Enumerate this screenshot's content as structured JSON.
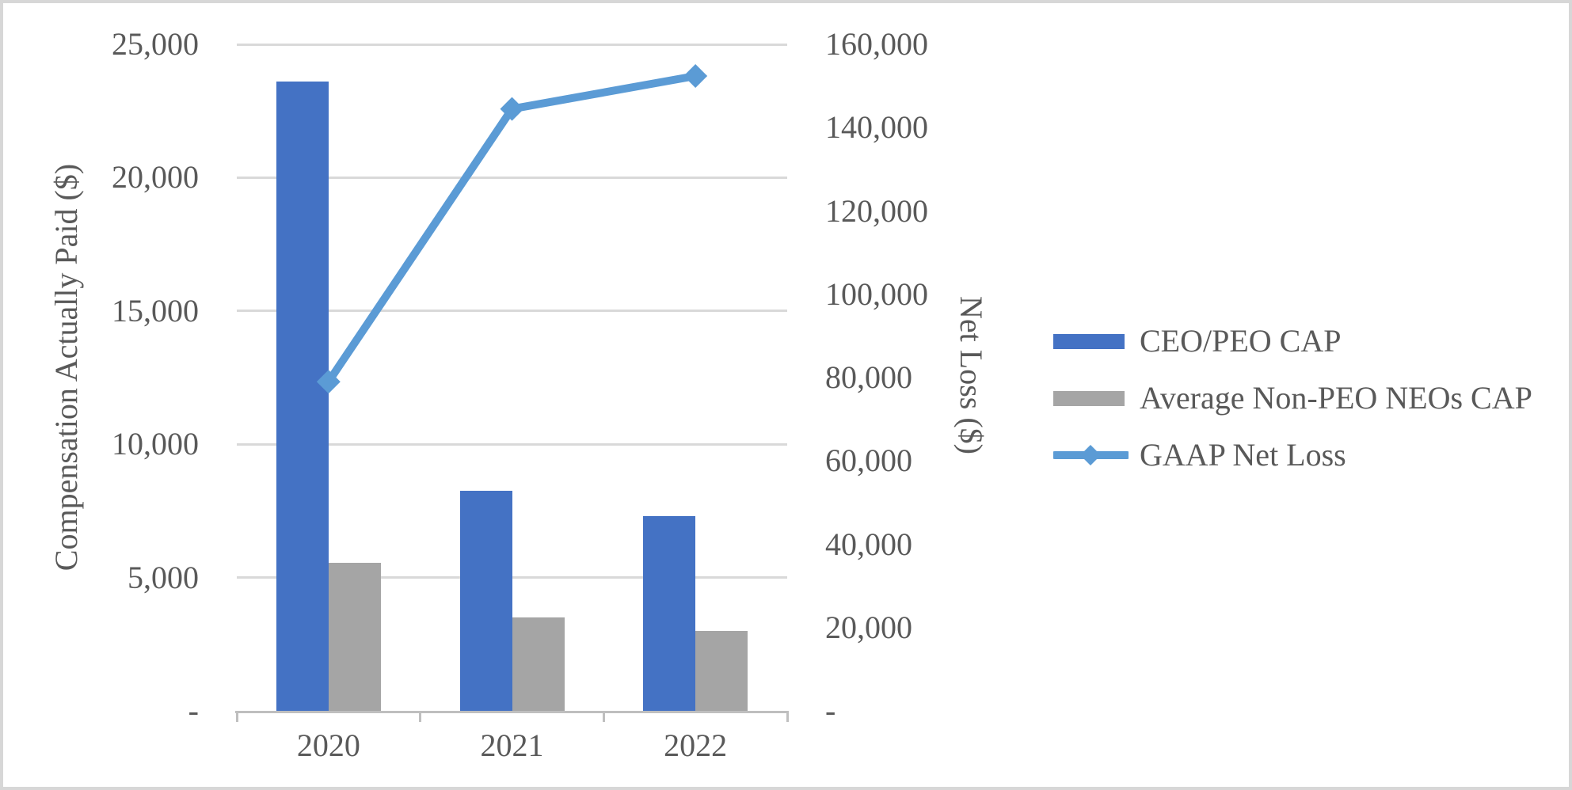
{
  "chart_data": {
    "type": "combo-bar-line",
    "title": "",
    "categories": [
      "2020",
      "2021",
      "2022"
    ],
    "series": [
      {
        "name": "CEO/PEO CAP",
        "chart": "bar",
        "axis": "left",
        "color": "#4472C4",
        "values": [
          23600,
          8250,
          7300
        ]
      },
      {
        "name": "Average Non-PEO NEOs CAP",
        "chart": "bar",
        "axis": "left",
        "color": "#A5A5A5",
        "values": [
          5550,
          3500,
          3000
        ]
      },
      {
        "name": "GAAP Net Loss",
        "chart": "line",
        "axis": "right",
        "color": "#5B9BD5",
        "marker": "diamond",
        "values": [
          79000,
          144500,
          152400
        ]
      }
    ],
    "left_axis": {
      "label": "Compensation Actually Paid ($)",
      "min": 0,
      "max": 25000,
      "ticks": [
        {
          "value": 25000,
          "label": "25,000"
        },
        {
          "value": 20000,
          "label": "20,000"
        },
        {
          "value": 15000,
          "label": "15,000"
        },
        {
          "value": 10000,
          "label": "10,000"
        },
        {
          "value": 5000,
          "label": "5,000"
        },
        {
          "value": 0,
          "label": "-"
        }
      ]
    },
    "right_axis": {
      "label": "Net Loss ($)",
      "min": 0,
      "max": 160000,
      "ticks": [
        {
          "value": 160000,
          "label": "160,000"
        },
        {
          "value": 140000,
          "label": "140,000"
        },
        {
          "value": 120000,
          "label": "120,000"
        },
        {
          "value": 100000,
          "label": "100,000"
        },
        {
          "value": 80000,
          "label": "80,000"
        },
        {
          "value": 60000,
          "label": "60,000"
        },
        {
          "value": 40000,
          "label": "40,000"
        },
        {
          "value": 20000,
          "label": "20,000"
        },
        {
          "value": 0,
          "label": "-"
        }
      ]
    },
    "legend_position": "right",
    "grid": true,
    "colors": {
      "text": "#595959",
      "gridline": "#D9D9D9",
      "axis_line": "#BFBFBF",
      "background": "#FFFFFF",
      "border": "#D7D7D7"
    }
  }
}
